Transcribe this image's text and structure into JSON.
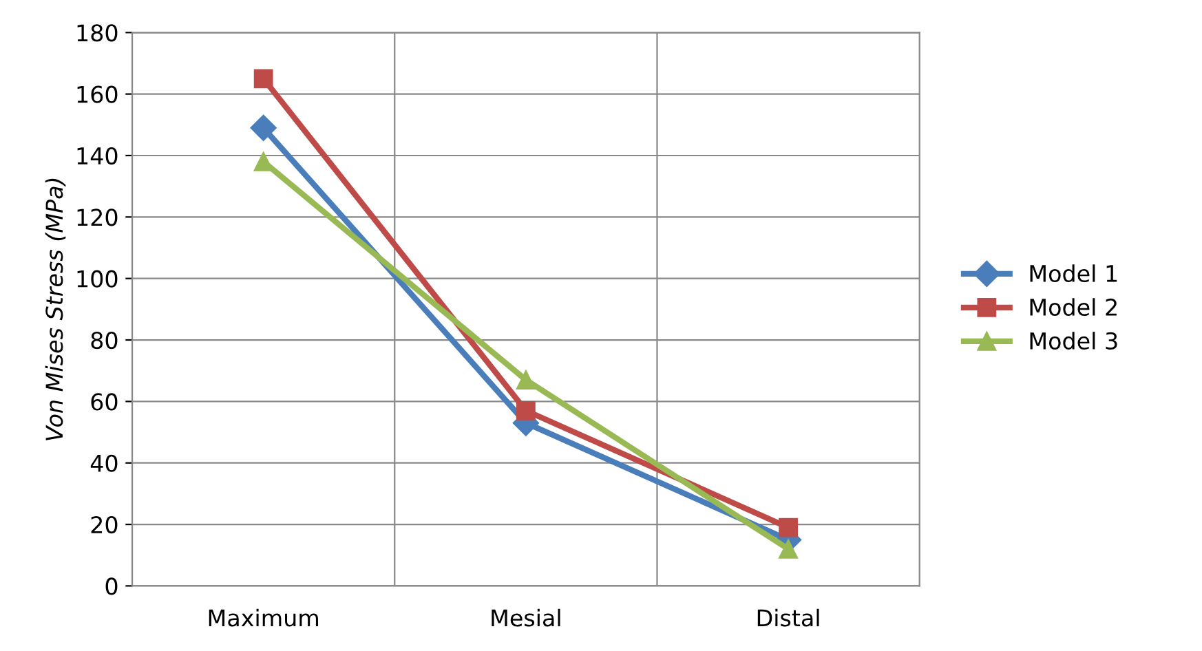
{
  "chart_data": {
    "type": "line",
    "ylabel": "Von Mises Stress (MPa)",
    "categories": [
      "Maximum",
      "Mesial",
      "Distal"
    ],
    "series": [
      {
        "name": "Model 1",
        "color": "#4a7ebb",
        "values": [
          149,
          53,
          15
        ],
        "marker": "diamond"
      },
      {
        "name": "Model 2",
        "color": "#be4b48",
        "values": [
          165,
          57,
          19
        ],
        "marker": "square"
      },
      {
        "name": "Model 3",
        "color": "#98b954",
        "values": [
          138,
          67,
          12
        ],
        "marker": "triangle"
      }
    ],
    "ylim": [
      0,
      180
    ],
    "yticks": [
      0,
      20,
      40,
      60,
      80,
      100,
      120,
      140,
      160,
      180
    ],
    "grid": true,
    "legend": "right"
  }
}
